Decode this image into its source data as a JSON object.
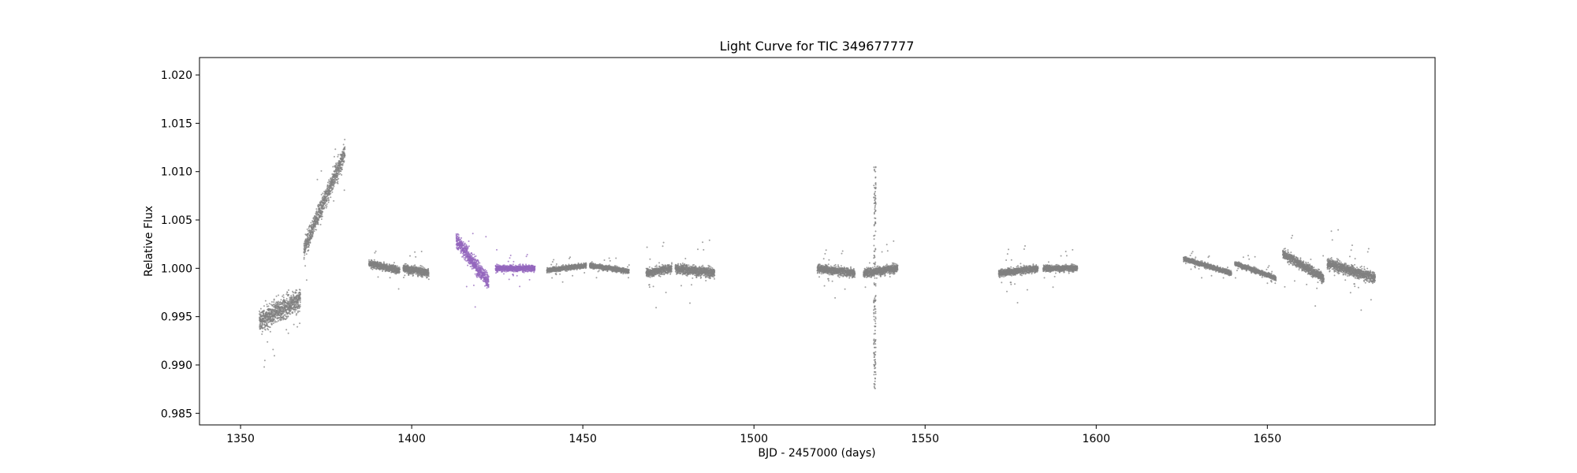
{
  "chart_data": {
    "type": "scatter",
    "title": "Light Curve for TIC 349677777",
    "xlabel": "BJD - 2457000 (days)",
    "ylabel": "Relative Flux",
    "xlim": [
      1338,
      1699
    ],
    "ylim": [
      0.9838,
      1.0218
    ],
    "xticks": [
      1350,
      1400,
      1450,
      1500,
      1550,
      1600,
      1650
    ],
    "yticks": [
      0.985,
      0.99,
      0.995,
      1.0,
      1.005,
      1.01,
      1.015,
      1.02
    ],
    "ytick_labels": [
      "0.985",
      "0.990",
      "0.995",
      "1.000",
      "1.005",
      "1.010",
      "1.015",
      "1.020"
    ],
    "grid": false,
    "colors": {
      "base": "#808080",
      "highlight": "#9467bd"
    },
    "series": [
      {
        "color": "#808080",
        "segments": [
          {
            "x": [
              1355.5,
              1367.5
            ],
            "y": [
              0.9945,
              0.9968
            ],
            "scatter": 0.0018,
            "outlier": 0.005
          },
          {
            "x": [
              1368.5,
              1380.5
            ],
            "y": [
              1.002,
              1.012
            ],
            "scatter": 0.0016,
            "outlier": 0.004
          },
          {
            "x": [
              1387.5,
              1396.5
            ],
            "y": [
              1.0005,
              0.9998
            ],
            "scatter": 0.0006,
            "outlier": 0.002
          },
          {
            "x": [
              1397.5,
              1405.0
            ],
            "y": [
              1.0,
              0.9995
            ],
            "scatter": 0.0007,
            "outlier": 0.0022
          },
          {
            "x": [
              1439.5,
              1451.0
            ],
            "y": [
              0.9998,
              1.0003
            ],
            "scatter": 0.0004,
            "outlier": 0.0015
          },
          {
            "x": [
              1452.0,
              1463.5
            ],
            "y": [
              1.0003,
              0.9997
            ],
            "scatter": 0.0004,
            "outlier": 0.0012
          },
          {
            "x": [
              1468.5,
              1476.0
            ],
            "y": [
              0.9995,
              1.0
            ],
            "scatter": 0.0007,
            "outlier": 0.004
          },
          {
            "x": [
              1477.0,
              1488.5
            ],
            "y": [
              1.0,
              0.9995
            ],
            "scatter": 0.0008,
            "outlier": 0.0035
          },
          {
            "x": [
              1518.5,
              1529.5
            ],
            "y": [
              1.0,
              0.9995
            ],
            "scatter": 0.0007,
            "outlier": 0.003
          },
          {
            "x": [
              1532.0,
              1542.0
            ],
            "y": [
              0.9995,
              1.0
            ],
            "scatter": 0.0007,
            "outlier": 0.003
          },
          {
            "x": [
              1571.5,
              1583.0
            ],
            "y": [
              0.9995,
              1.0
            ],
            "scatter": 0.0006,
            "outlier": 0.0035
          },
          {
            "x": [
              1584.5,
              1594.5
            ],
            "y": [
              1.0,
              1.0
            ],
            "scatter": 0.0005,
            "outlier": 0.002
          },
          {
            "x": [
              1625.5,
              1639.5
            ],
            "y": [
              1.001,
              0.9995
            ],
            "scatter": 0.0004,
            "outlier": 0.0015
          },
          {
            "x": [
              1640.5,
              1652.5
            ],
            "y": [
              1.0005,
              0.999
            ],
            "scatter": 0.0004,
            "outlier": 0.0015
          },
          {
            "x": [
              1654.5,
              1666.5
            ],
            "y": [
              1.0015,
              0.999
            ],
            "scatter": 0.0008,
            "outlier": 0.0035
          },
          {
            "x": [
              1667.5,
              1681.5
            ],
            "y": [
              1.0005,
              0.999
            ],
            "scatter": 0.0009,
            "outlier": 0.004
          }
        ],
        "spike": {
          "x": 1535.3,
          "y_min": 0.9875,
          "y_max": 1.0105
        }
      },
      {
        "color": "#9467bd",
        "segments": [
          {
            "x": [
              1413.0,
              1422.5
            ],
            "y": [
              1.003,
              0.9985
            ],
            "scatter": 0.0013,
            "outlier": 0.0045
          },
          {
            "x": [
              1424.5,
              1436.0
            ],
            "y": [
              1.0,
              1.0
            ],
            "scatter": 0.0005,
            "outlier": 0.002
          }
        ]
      }
    ]
  }
}
